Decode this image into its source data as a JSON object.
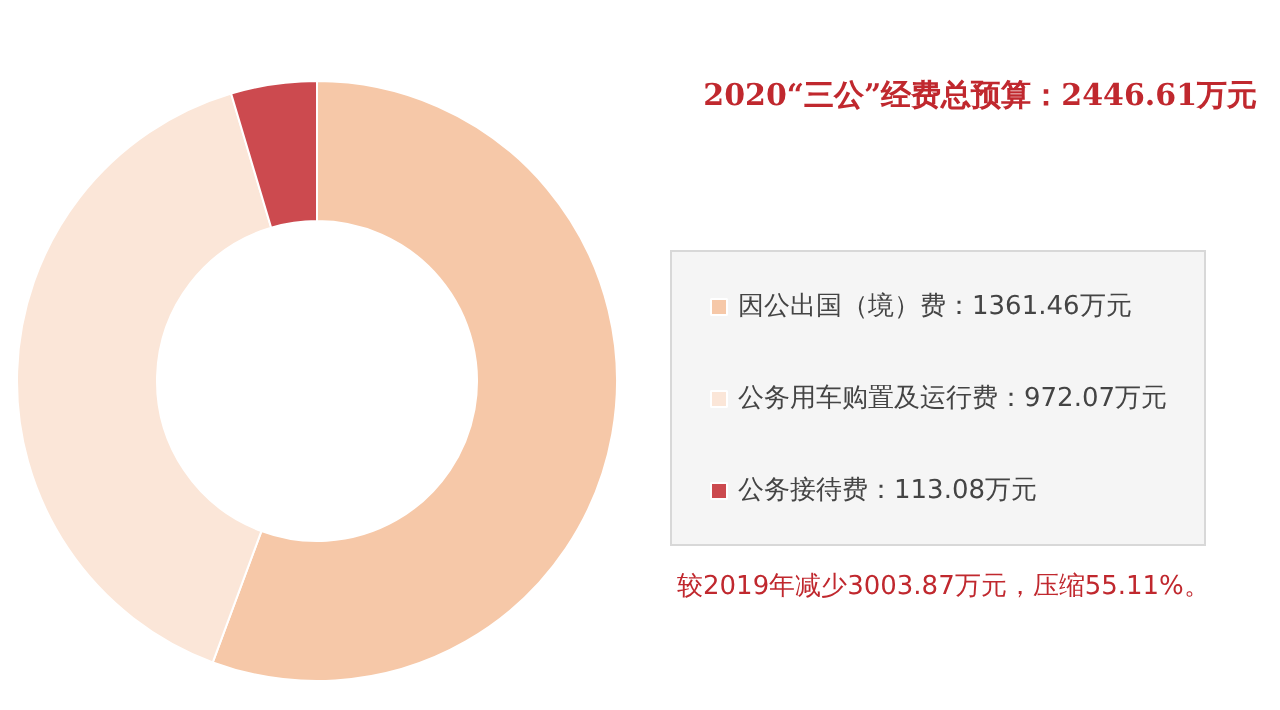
{
  "chart_data": {
    "type": "donut",
    "title": "2020“三公”经费总预算：2446.61万元",
    "categories": [
      "因公出国（境）费",
      "公务用车购置及运行费",
      "公务接待费"
    ],
    "values": [
      1361.46,
      972.07,
      113.08
    ],
    "value_labels": [
      "1361.46万元",
      "972.07万元",
      "113.08万元"
    ],
    "colors": [
      "#f6c8a8",
      "#fbe6d8",
      "#cc4a4f"
    ],
    "legend": "right",
    "annotations": [
      "较2019年减少3003.87万元，压缩55.11%。"
    ]
  }
}
